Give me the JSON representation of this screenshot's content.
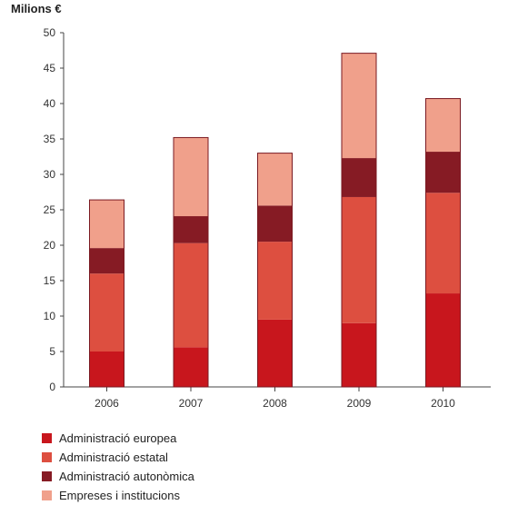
{
  "chart_data": {
    "type": "bar",
    "stacked": true,
    "ylabel": "Milions €",
    "ylim": [
      0,
      50
    ],
    "yticks": [
      0,
      5,
      10,
      15,
      20,
      25,
      30,
      35,
      40,
      45,
      50
    ],
    "categories": [
      "2006",
      "2007",
      "2008",
      "2009",
      "2010"
    ],
    "series": [
      {
        "name": "Administració europea",
        "color": "#c8161d",
        "values": [
          5.0,
          5.6,
          9.5,
          9.0,
          13.2
        ]
      },
      {
        "name": "Administració estatal",
        "color": "#dd4f40",
        "values": [
          11.0,
          14.7,
          11.0,
          17.8,
          14.2
        ]
      },
      {
        "name": "Administració autonòmica",
        "color": "#861b24",
        "values": [
          3.6,
          3.8,
          5.1,
          5.5,
          5.8
        ]
      },
      {
        "name": "Empreses i institucions",
        "color": "#f0a08b",
        "values": [
          6.8,
          11.1,
          7.4,
          14.8,
          7.5
        ]
      }
    ],
    "grid": false,
    "legend_position": "bottom-left"
  }
}
